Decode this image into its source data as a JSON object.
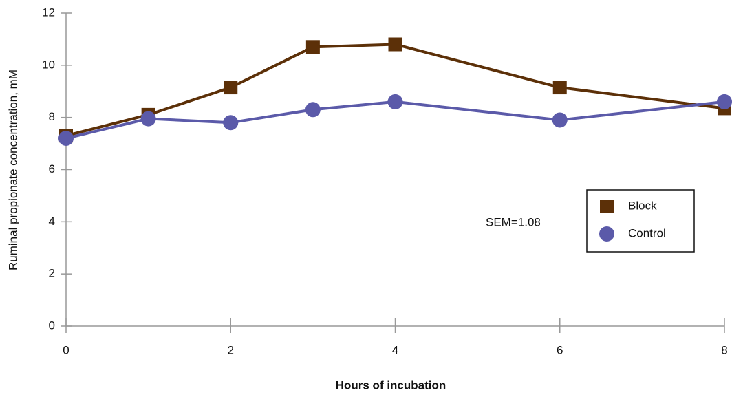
{
  "chart_data": {
    "type": "line",
    "xlabel": "Hours of incubation",
    "ylabel": "Ruminal propionate concentration, mM",
    "annotation": "SEM=1.08",
    "x": [
      0,
      1,
      2,
      3,
      4,
      6,
      8
    ],
    "series": [
      {
        "name": "Block",
        "color": "#5c3008",
        "marker": "square",
        "values": [
          7.3,
          8.1,
          9.15,
          10.7,
          10.8,
          9.15,
          8.35
        ]
      },
      {
        "name": "Control",
        "color": "#5b5aa9",
        "marker": "circle",
        "values": [
          7.2,
          7.95,
          7.8,
          8.3,
          8.6,
          7.9,
          8.6
        ]
      }
    ],
    "xlim": [
      0,
      8
    ],
    "xticks": [
      0,
      2,
      4,
      6,
      8
    ],
    "ylim": [
      0,
      12
    ],
    "yticks": [
      0,
      2,
      4,
      6,
      8,
      10,
      12
    ],
    "grid": false,
    "legend": "right"
  }
}
